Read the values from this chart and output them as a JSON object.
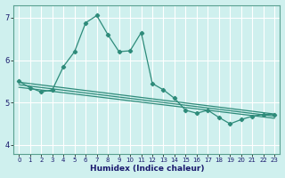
{
  "xlabel": "Humidex (Indice chaleur)",
  "background_color": "#cff0ee",
  "grid_color": "#ffffff",
  "line_color": "#2e8b7a",
  "xlim": [
    -0.5,
    23.5
  ],
  "ylim": [
    3.8,
    7.3
  ],
  "yticks": [
    4,
    5,
    6,
    7
  ],
  "xticks": [
    0,
    1,
    2,
    3,
    4,
    5,
    6,
    7,
    8,
    9,
    10,
    11,
    12,
    13,
    14,
    15,
    16,
    17,
    18,
    19,
    20,
    21,
    22,
    23
  ],
  "line1_x": [
    0,
    1,
    2,
    3,
    4,
    5,
    6,
    7,
    8,
    9,
    10,
    11,
    12,
    13,
    14,
    15,
    16,
    17,
    18,
    19,
    20,
    21,
    22,
    23
  ],
  "line1_y": [
    5.5,
    5.35,
    5.25,
    5.3,
    5.85,
    6.2,
    6.88,
    7.05,
    6.6,
    6.2,
    6.22,
    6.65,
    5.45,
    5.3,
    5.1,
    4.82,
    4.75,
    4.82,
    4.65,
    4.5,
    4.6,
    4.68,
    4.72,
    4.72
  ],
  "line2_x": [
    0,
    23
  ],
  "line2_y": [
    5.48,
    4.73
  ],
  "line3_x": [
    0,
    23
  ],
  "line3_y": [
    5.42,
    4.68
  ],
  "line4_x": [
    0,
    23
  ],
  "line4_y": [
    5.36,
    4.63
  ]
}
